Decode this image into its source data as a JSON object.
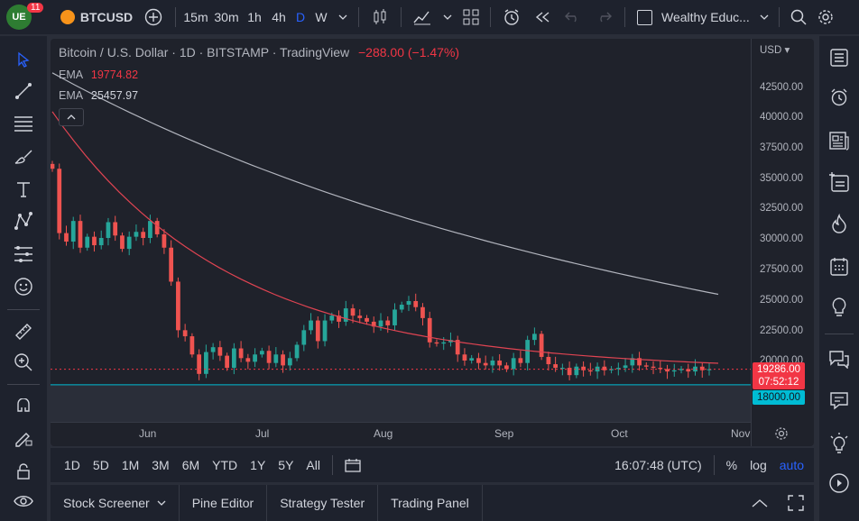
{
  "topbar": {
    "notifications": "11",
    "symbol": "BTCUSD",
    "intervals": [
      "15m",
      "30m",
      "1h",
      "4h",
      "D",
      "W"
    ],
    "active_interval": "D",
    "layout_name": "Wealthy Educ..."
  },
  "legend": {
    "title": "Bitcoin / U.S. Dollar · 1D · BITSTAMP · TradingView",
    "change": "−288.00 (−1.47%)",
    "ema1_label": "EMA",
    "ema1_value": "19774.82",
    "ema2_label": "EMA",
    "ema2_value": "25457.97"
  },
  "price_axis": {
    "currency": "USD",
    "ticks": [
      "42500.00",
      "40000.00",
      "37500.00",
      "35000.00",
      "32500.00",
      "30000.00",
      "27500.00",
      "25000.00",
      "22500.00",
      "20000.00"
    ],
    "last_price": "19286.00",
    "countdown": "07:52:12",
    "level_label": "18000.00"
  },
  "time_axis": [
    "Jun",
    "Jul",
    "Aug",
    "Sep",
    "Oct",
    "Nov"
  ],
  "colors": {
    "up": "#26a69a",
    "down": "#ef5350",
    "ema_fast": "#e04452",
    "ema_slow": "#b2b5be",
    "level_line": "#00bcd4",
    "last_price": "#f23645"
  },
  "chart_data": {
    "type": "candlestick",
    "x_range": [
      "2022-05-10",
      "2022-10-24"
    ],
    "ylim": [
      17000,
      44000
    ],
    "horizontal_line": 18000,
    "last_price": 19286,
    "ema_fast_endpoints": [
      40500,
      19775
    ],
    "ema_slow_endpoints": [
      43700,
      25458
    ],
    "close_path": [
      35800,
      30500,
      29800,
      31500,
      29300,
      30200,
      29500,
      30100,
      31400,
      30300,
      29200,
      30200,
      30600,
      30100,
      31500,
      30400,
      29300,
      26500,
      22500,
      22000,
      20500,
      18900,
      20700,
      21100,
      20400,
      19400,
      21000,
      20200,
      19900,
      20500,
      20800,
      19800,
      20500,
      19600,
      20200,
      21300,
      22500,
      23300,
      21600,
      23300,
      23700,
      23200,
      24300,
      23700,
      23500,
      23200,
      22800,
      23300,
      22900,
      24200,
      24600,
      24900,
      24400,
      23500,
      21500,
      21400,
      21500,
      21700,
      20500,
      20000,
      20200,
      19800,
      19600,
      20000,
      19600,
      19300,
      20200,
      19800,
      21700,
      22200,
      20300,
      19700,
      19400,
      19400,
      18800,
      19500,
      19200,
      19100,
      19500,
      19200,
      19300,
      19400,
      19600,
      20200,
      19600,
      19500,
      19400,
      19300,
      19100,
      19200,
      19300,
      19100,
      19500,
      19200,
      19286
    ]
  },
  "bottom_toolbar": {
    "ranges": [
      "1D",
      "5D",
      "1M",
      "3M",
      "6M",
      "YTD",
      "1Y",
      "5Y",
      "All"
    ],
    "time": "16:07:48 (UTC)",
    "percent": "%",
    "log": "log",
    "auto": "auto"
  },
  "panel_tabs": [
    "Stock Screener",
    "Pine Editor",
    "Strategy Tester",
    "Trading Panel"
  ]
}
